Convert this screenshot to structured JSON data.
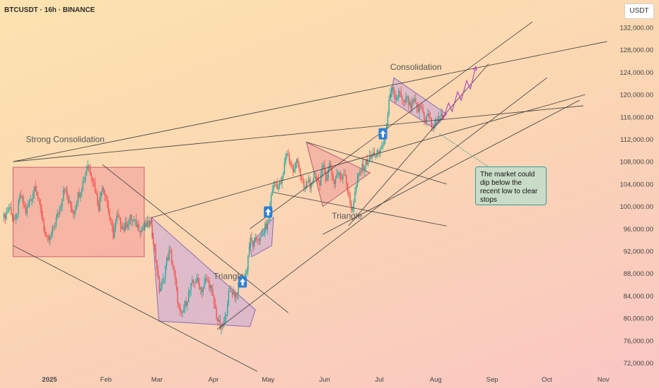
{
  "header": {
    "title": "BTCUSDT · 16h · BINANCE",
    "unit_badge": "USDT"
  },
  "chart_data": {
    "type": "candlestick",
    "title": "BTCUSDT · 16h · BINANCE",
    "ylim": [
      70000,
      134000
    ],
    "y_ticks": [
      132000,
      128000,
      124000,
      120000,
      116000,
      112000,
      108000,
      104000,
      100000,
      96000,
      92000,
      88000,
      84000,
      80000,
      76000,
      72000
    ],
    "y_tick_labels": [
      "132,000.00",
      "128,000.00",
      "124,000.00",
      "120,000.00",
      "116,000.00",
      "112,000.00",
      "108,000.00",
      "104,000.00",
      "100,000.00",
      "96,000.00",
      "92,000.00",
      "88,000.00",
      "84,000.00",
      "80,000.00",
      "76,000.00",
      "72,000.00"
    ],
    "x_ticks": [
      "2025",
      "Feb",
      "Mar",
      "Apr",
      "May",
      "Jun",
      "Jul",
      "Aug",
      "Sep",
      "Oct",
      "Nov"
    ],
    "x_tick_days": [
      0,
      31,
      59,
      90,
      120,
      151,
      181,
      212,
      243,
      273,
      304
    ],
    "up_color": "#26a69a",
    "down_color": "#ef5350",
    "price_path": [
      [
        -25,
        98000
      ],
      [
        -22,
        100000
      ],
      [
        -19,
        97000
      ],
      [
        -16,
        102000
      ],
      [
        -13,
        99000
      ],
      [
        -10,
        101500
      ],
      [
        -8,
        104000
      ],
      [
        -6,
        101000
      ],
      [
        -4,
        98000
      ],
      [
        -2,
        94000
      ],
      [
        0,
        94000
      ],
      [
        3,
        97000
      ],
      [
        6,
        100000
      ],
      [
        8,
        104000
      ],
      [
        10,
        101000
      ],
      [
        13,
        99000
      ],
      [
        15,
        101500
      ],
      [
        17,
        103000
      ],
      [
        19,
        105000
      ],
      [
        21,
        107500
      ],
      [
        23,
        106000
      ],
      [
        25,
        103000
      ],
      [
        27,
        100000
      ],
      [
        29,
        104000
      ],
      [
        31,
        102000
      ],
      [
        33,
        98000
      ],
      [
        35,
        95000
      ],
      [
        37,
        98000
      ],
      [
        39,
        97000
      ],
      [
        41,
        96000
      ],
      [
        44,
        98000
      ],
      [
        47,
        97000
      ],
      [
        50,
        96000
      ],
      [
        53,
        96500
      ],
      [
        55,
        97000
      ],
      [
        57,
        94000
      ],
      [
        59,
        89000
      ],
      [
        60,
        85000
      ],
      [
        62,
        86000
      ],
      [
        64,
        90000
      ],
      [
        66,
        92000
      ],
      [
        68,
        89000
      ],
      [
        70,
        84000
      ],
      [
        72,
        80000
      ],
      [
        74,
        82000
      ],
      [
        76,
        84000
      ],
      [
        78,
        86000
      ],
      [
        80,
        87000
      ],
      [
        82,
        86000
      ],
      [
        84,
        85000
      ],
      [
        86,
        87000
      ],
      [
        88,
        86000
      ],
      [
        90,
        83000
      ],
      [
        92,
        80000
      ],
      [
        94,
        78000
      ],
      [
        96,
        79000
      ],
      [
        98,
        84000
      ],
      [
        100,
        85000
      ],
      [
        102,
        84000
      ],
      [
        104,
        86000
      ],
      [
        106,
        87000
      ],
      [
        108,
        88000
      ],
      [
        110,
        94000
      ],
      [
        112,
        93000
      ],
      [
        114,
        94500
      ],
      [
        116,
        94000
      ],
      [
        118,
        96000
      ],
      [
        120,
        97000
      ],
      [
        122,
        103000
      ],
      [
        124,
        104000
      ],
      [
        126,
        103500
      ],
      [
        128,
        105000
      ],
      [
        130,
        110000
      ],
      [
        132,
        108000
      ],
      [
        134,
        106000
      ],
      [
        136,
        109000
      ],
      [
        138,
        105000
      ],
      [
        140,
        103000
      ],
      [
        142,
        105000
      ],
      [
        144,
        103000
      ],
      [
        146,
        106000
      ],
      [
        148,
        104000
      ],
      [
        150,
        107000
      ],
      [
        152,
        105000
      ],
      [
        154,
        108000
      ],
      [
        156,
        104000
      ],
      [
        158,
        106000
      ],
      [
        160,
        105000
      ],
      [
        162,
        106500
      ],
      [
        164,
        102000
      ],
      [
        166,
        99000
      ],
      [
        168,
        103000
      ],
      [
        170,
        106000
      ],
      [
        172,
        107000
      ],
      [
        174,
        108000
      ],
      [
        176,
        108500
      ],
      [
        178,
        109500
      ],
      [
        180,
        109000
      ],
      [
        182,
        110500
      ],
      [
        184,
        112000
      ],
      [
        186,
        118000
      ],
      [
        188,
        121000
      ],
      [
        190,
        119000
      ],
      [
        192,
        120500
      ],
      [
        194,
        118000
      ],
      [
        196,
        119500
      ],
      [
        198,
        117500
      ],
      [
        200,
        119000
      ],
      [
        202,
        117000
      ],
      [
        204,
        118000
      ],
      [
        206,
        115500
      ],
      [
        208,
        116500
      ],
      [
        210,
        114000
      ],
      [
        212,
        115000
      ],
      [
        214,
        116500
      ],
      [
        216,
        115500
      ]
    ],
    "projection": [
      [
        216,
        115500
      ],
      [
        219,
        118500
      ],
      [
        221,
        117000
      ],
      [
        224,
        120500
      ],
      [
        226,
        119000
      ],
      [
        229,
        122500
      ],
      [
        231,
        121000
      ],
      [
        234,
        125000
      ]
    ],
    "trendlines": [
      {
        "from": [
          -20,
          108000
        ],
        "to": [
          306,
          129500
        ]
      },
      {
        "from": [
          -20,
          108000
        ],
        "to": [
          293,
          118000
        ]
      },
      {
        "from": [
          -20,
          93000
        ],
        "to": [
          114,
          70500
        ]
      },
      {
        "from": [
          56,
          98000
        ],
        "to": [
          294,
          120000
        ]
      },
      {
        "from": [
          150,
          95000
        ],
        "to": [
          291,
          119000
        ]
      },
      {
        "from": [
          92,
          78000
        ],
        "to": [
          273,
          123000
        ]
      },
      {
        "from": [
          110,
          96000
        ],
        "to": [
          265,
          133000
        ]
      },
      {
        "from": [
          123,
          102500
        ],
        "to": [
          218,
          96500
        ]
      },
      {
        "from": [
          29,
          107500
        ],
        "to": [
          131,
          81000
        ]
      },
      {
        "from": [
          141,
          111500
        ],
        "to": [
          218,
          104000
        ]
      },
      {
        "from": [
          164,
          96500
        ],
        "to": [
          241,
          125500
        ]
      }
    ],
    "shapes": [
      {
        "type": "rect",
        "points": [
          [
            -20,
            107000
          ],
          [
            52,
            107000
          ],
          [
            52,
            91000
          ],
          [
            -20,
            91000
          ]
        ],
        "fill": "#f3999a",
        "stroke": "#c8646c"
      },
      {
        "type": "polygon",
        "points": [
          [
            56,
            98000
          ],
          [
            60,
            79500
          ],
          [
            110,
            78500
          ],
          [
            113,
            81500
          ]
        ],
        "fill": "#c7a6d8",
        "stroke": "#8c6ab0"
      },
      {
        "type": "polygon",
        "points": [
          [
            110,
            93000
          ],
          [
            123,
            98000
          ],
          [
            122,
            93000
          ],
          [
            111,
            91000
          ]
        ],
        "fill": "#c7a6d8",
        "stroke": "#8c6ab0"
      },
      {
        "type": "polygon",
        "points": [
          [
            141,
            111500
          ],
          [
            176,
            106000
          ],
          [
            150,
            100000
          ]
        ],
        "fill": "#ee9b9b",
        "stroke": "#b06070"
      },
      {
        "type": "polygon",
        "points": [
          [
            189,
            123000
          ],
          [
            218,
            116500
          ],
          [
            211,
            114000
          ],
          [
            187,
            119000
          ]
        ],
        "fill": "#c7a6d8",
        "stroke": "#8c6ab0"
      }
    ],
    "annotations": [
      {
        "text": "Strong Consolidation",
        "at": [
          -13,
          111500
        ]
      },
      {
        "text": "Triangle",
        "at": [
          90,
          87000
        ]
      },
      {
        "text": "Triangle",
        "at": [
          155,
          97800
        ]
      },
      {
        "text": "Consolidation",
        "at": [
          187,
          124400
        ]
      }
    ],
    "callout": {
      "text": "The market could dip below the recent low to clear stops",
      "target": [
        214,
        113000
      ]
    },
    "buy_markers": [
      [
        106,
        86500
      ],
      [
        120,
        99000
      ],
      [
        183,
        113000
      ]
    ]
  }
}
